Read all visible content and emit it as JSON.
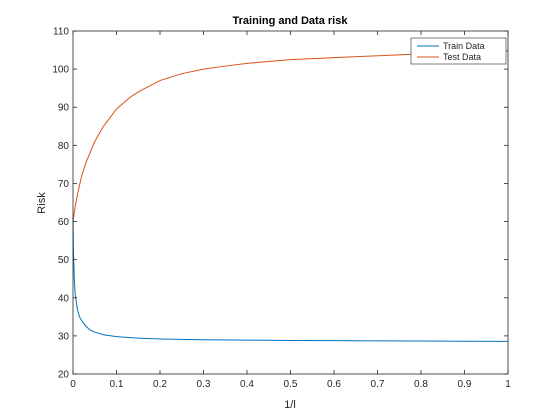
{
  "chart_data": {
    "type": "line",
    "title": "Training and Data risk",
    "xlabel": "1/l",
    "ylabel": "Risk",
    "xlim": [
      0,
      1
    ],
    "ylim": [
      20,
      110
    ],
    "x_ticks": [
      "0",
      "0.1",
      "0.2",
      "0.3",
      "0.4",
      "0.5",
      "0.6",
      "0.7",
      "0.8",
      "0.9",
      "1"
    ],
    "y_ticks": [
      "20",
      "30",
      "40",
      "50",
      "60",
      "70",
      "80",
      "90",
      "100",
      "110"
    ],
    "grid": false,
    "legend_position": "top-right",
    "series": [
      {
        "name": "Train Data",
        "color": "#0072BD",
        "x": [
          0,
          0.001,
          0.003,
          0.005,
          0.01,
          0.015,
          0.02,
          0.03,
          0.04,
          0.05,
          0.07,
          0.1,
          0.15,
          0.2,
          0.3,
          0.4,
          0.5,
          0.6,
          0.7,
          0.8,
          0.9,
          1.0
        ],
        "y": [
          61,
          52,
          45,
          41,
          37,
          35,
          34,
          32.5,
          31.5,
          31,
          30.3,
          29.8,
          29.4,
          29.2,
          29,
          28.9,
          28.8,
          28.75,
          28.7,
          28.65,
          28.6,
          28.55
        ]
      },
      {
        "name": "Test Data",
        "color": "#D95319",
        "x": [
          0,
          0.005,
          0.01,
          0.02,
          0.03,
          0.05,
          0.07,
          0.1,
          0.13,
          0.15,
          0.2,
          0.25,
          0.3,
          0.35,
          0.4,
          0.5,
          0.6,
          0.7,
          0.8,
          0.9,
          1.0
        ],
        "y": [
          60,
          64,
          67,
          72,
          75.5,
          81,
          85,
          89.5,
          92.5,
          94,
          97,
          98.8,
          100,
          100.8,
          101.5,
          102.5,
          103,
          103.5,
          104,
          104.5,
          104.8
        ]
      }
    ]
  }
}
